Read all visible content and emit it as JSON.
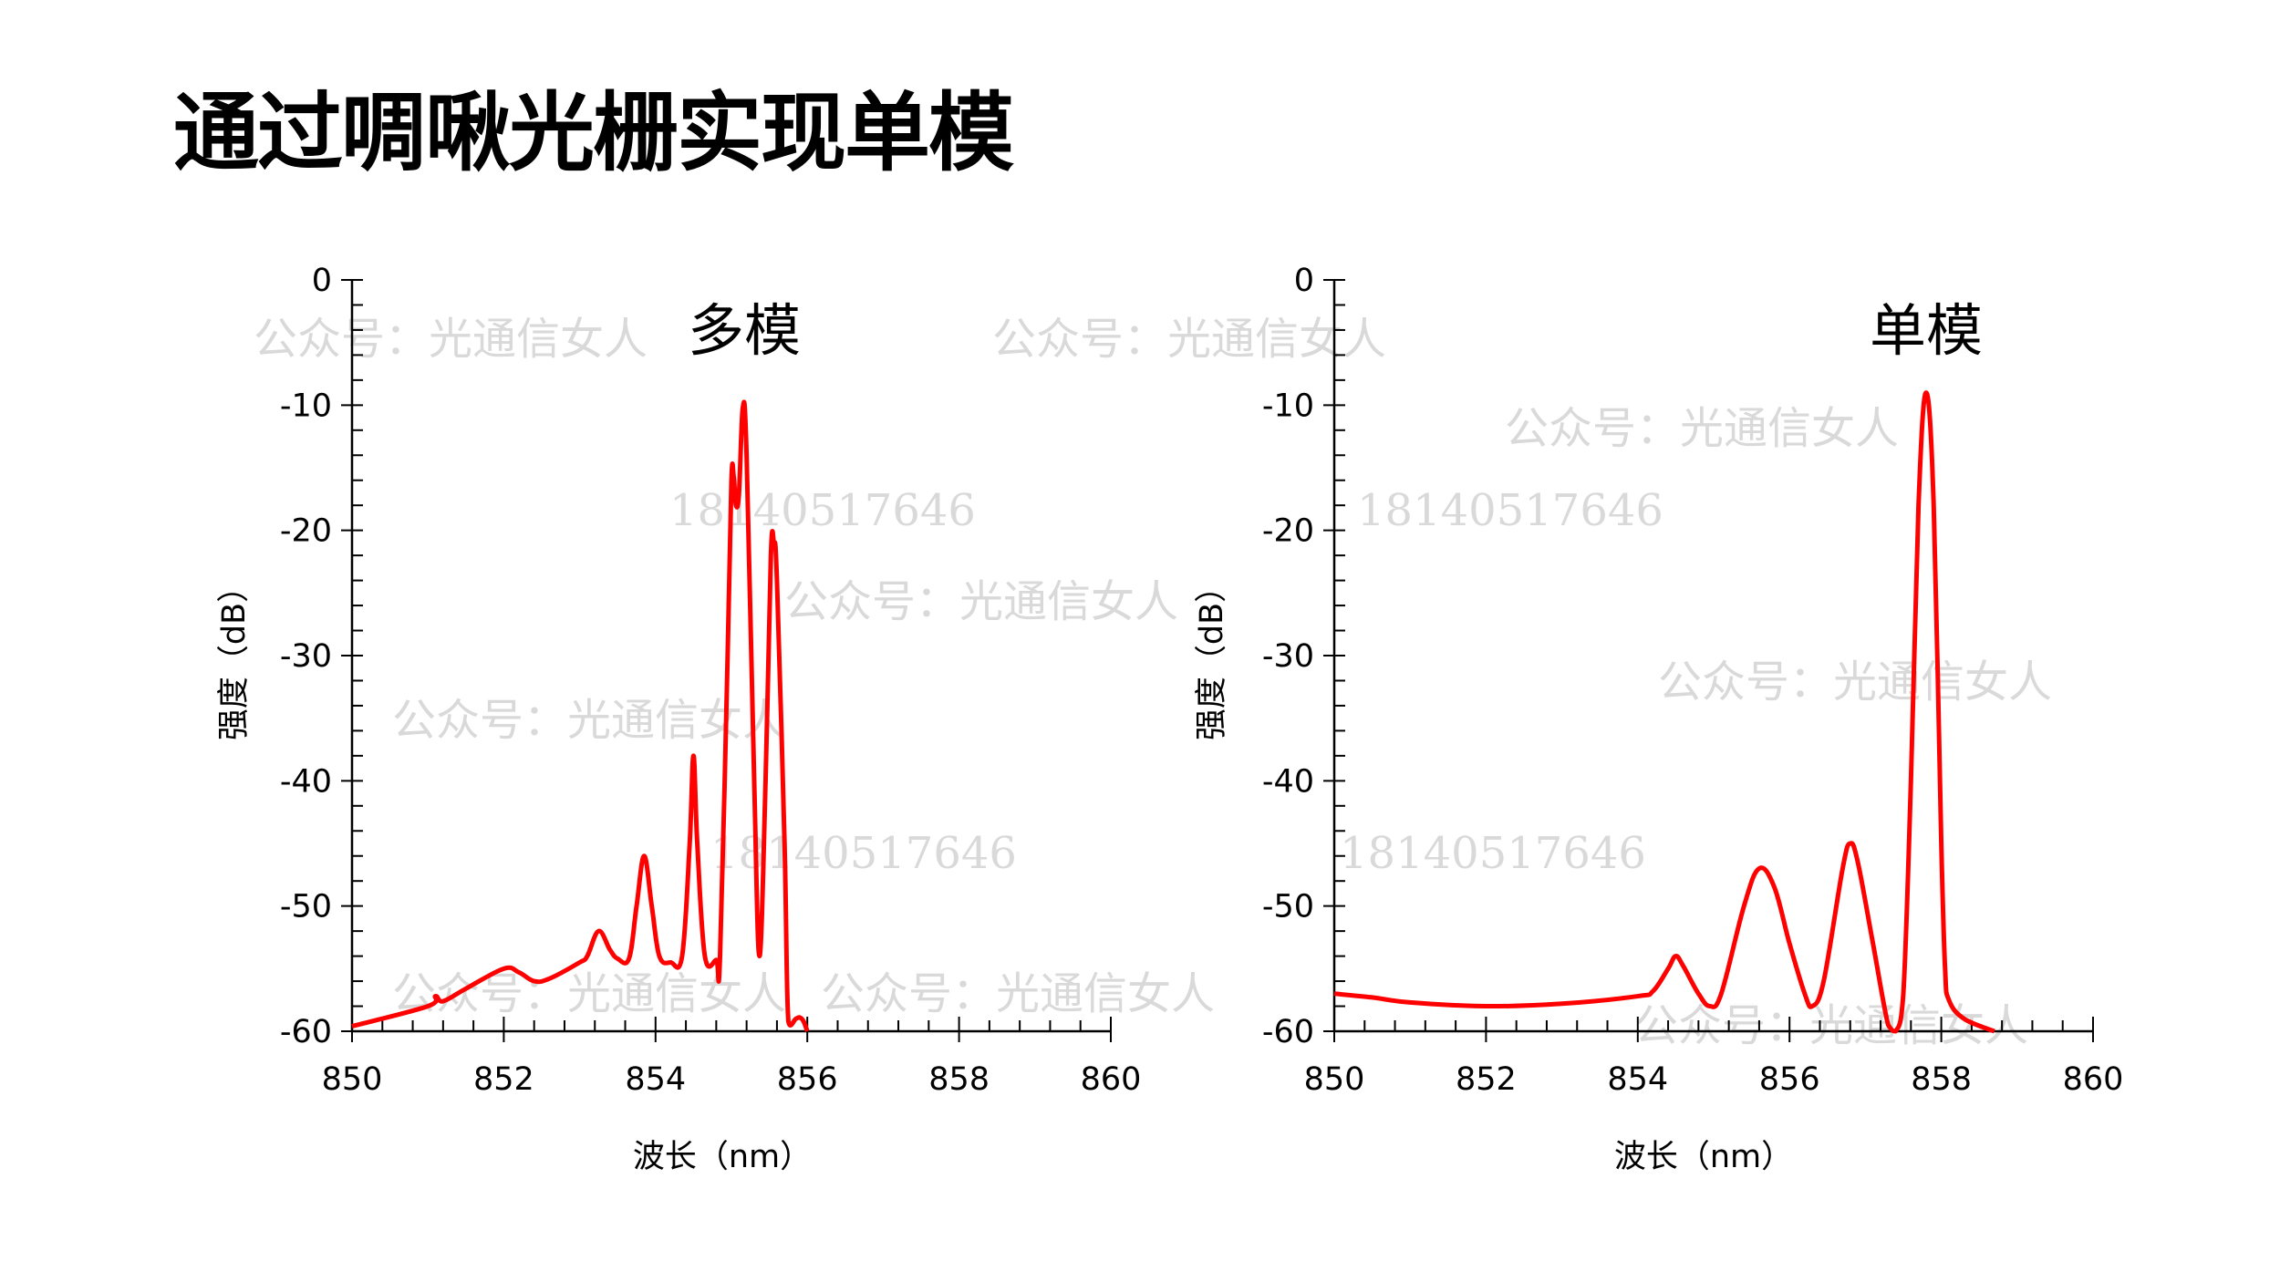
{
  "page_title": "通过啁啾光栅实现单模",
  "watermarks": {
    "account": "公众号：光通信女人",
    "phone": "18140517646"
  },
  "colors": {
    "series": "#ff0000",
    "axis": "#000000",
    "watermark": "#d9d9d9"
  },
  "chart_data": [
    {
      "type": "line",
      "title": "多模",
      "xlabel": "波长（nm）",
      "ylabel": "强度（dB）",
      "xlim": [
        850,
        860
      ],
      "ylim": [
        -60,
        0
      ],
      "xticks": [
        "850",
        "852",
        "854",
        "856",
        "858",
        "860"
      ],
      "yticks": [
        "0",
        "-10",
        "-20",
        "-30",
        "-40",
        "-50",
        "-60"
      ],
      "grid": false,
      "series": [
        {
          "name": "多模",
          "x": [
            850,
            851,
            851.1,
            851.2,
            851.5,
            852,
            852.2,
            852.4,
            852.6,
            853,
            853.1,
            853.25,
            853.4,
            853.5,
            853.65,
            853.75,
            853.85,
            853.95,
            854.05,
            854.2,
            854.35,
            854.45,
            854.5,
            854.55,
            854.65,
            854.8,
            854.85,
            854.95,
            855.0,
            855.03,
            855.06,
            855.1,
            855.15,
            855.2,
            855.3,
            855.37,
            855.45,
            855.52,
            855.56,
            855.6,
            855.7,
            855.75,
            855.85,
            855.9,
            855.95,
            856.0
          ],
          "y": [
            -59.6,
            -58,
            -57.2,
            -57.6,
            -56.6,
            -55,
            -55.3,
            -56,
            -55.8,
            -54.5,
            -54,
            -52,
            -53.5,
            -54.2,
            -54.2,
            -50,
            -46,
            -50,
            -54,
            -54.5,
            -54,
            -45,
            -38,
            -45,
            -54,
            -54.3,
            -54,
            -30,
            -16,
            -15.7,
            -18,
            -17,
            -10.2,
            -14,
            -40,
            -54,
            -40,
            -22,
            -21,
            -24,
            -45,
            -59.2,
            -59,
            -58.9,
            -59.2,
            -60
          ]
        }
      ]
    },
    {
      "type": "line",
      "title": "单模",
      "xlabel": "波长（nm）",
      "ylabel": "强度（dB）",
      "xlim": [
        850,
        860
      ],
      "ylim": [
        -60,
        0
      ],
      "xticks": [
        "850",
        "852",
        "854",
        "856",
        "858",
        "860"
      ],
      "yticks": [
        "0",
        "-10",
        "-20",
        "-30",
        "-40",
        "-50",
        "-60"
      ],
      "grid": false,
      "series": [
        {
          "name": "单模",
          "x": [
            850,
            850.5,
            851,
            852,
            853,
            854,
            854.2,
            854.4,
            854.5,
            854.6,
            854.8,
            854.95,
            855.1,
            855.4,
            855.6,
            855.8,
            856.0,
            856.2,
            856.3,
            856.45,
            856.7,
            856.8,
            856.9,
            857.1,
            857.3,
            857.4,
            857.5,
            857.6,
            857.7,
            857.8,
            857.9,
            858.0,
            858.05,
            858.1,
            858.3,
            858.7
          ],
          "y": [
            -57,
            -57.3,
            -57.7,
            -58,
            -57.8,
            -57.2,
            -56.8,
            -55,
            -54,
            -54.8,
            -57,
            -58,
            -57,
            -50,
            -47,
            -48.5,
            -53,
            -57,
            -58,
            -56,
            -47,
            -45,
            -46.5,
            -53,
            -59.5,
            -60,
            -57,
            -40,
            -18,
            -9,
            -18,
            -45,
            -55,
            -57.5,
            -59,
            -60
          ]
        }
      ]
    }
  ]
}
